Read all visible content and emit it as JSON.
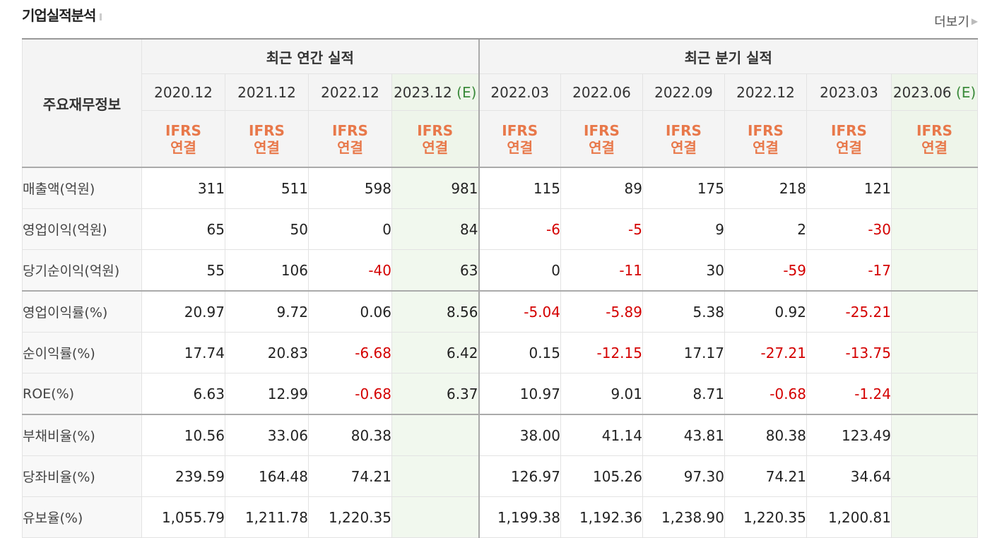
{
  "header": {
    "title": "기업실적분석",
    "more_label": "더보기"
  },
  "table": {
    "row_header_label": "주요재무정보",
    "annual_group_label": "최근 연간 실적",
    "quarter_group_label": "최근 분기 실적",
    "periods": [
      {
        "label": "2020.12",
        "est": ""
      },
      {
        "label": "2021.12",
        "est": ""
      },
      {
        "label": "2022.12",
        "est": ""
      },
      {
        "label": "2023.12",
        "est": "(E)"
      },
      {
        "label": "2022.03",
        "est": ""
      },
      {
        "label": "2022.06",
        "est": ""
      },
      {
        "label": "2022.09",
        "est": ""
      },
      {
        "label": "2022.12",
        "est": ""
      },
      {
        "label": "2023.03",
        "est": ""
      },
      {
        "label": "2023.06",
        "est": "(E)"
      }
    ],
    "ifrs_line1": "IFRS",
    "ifrs_line2": "연결",
    "rows": [
      {
        "label": "매출액(억원)",
        "values": [
          "311",
          "511",
          "598",
          "981",
          "115",
          "89",
          "175",
          "218",
          "121",
          ""
        ]
      },
      {
        "label": "영업이익(억원)",
        "values": [
          "65",
          "50",
          "0",
          "84",
          "-6",
          "-5",
          "9",
          "2",
          "-30",
          ""
        ]
      },
      {
        "label": "당기순이익(억원)",
        "values": [
          "55",
          "106",
          "-40",
          "63",
          "0",
          "-11",
          "30",
          "-59",
          "-17",
          ""
        ]
      },
      {
        "label": "영업이익률(%)",
        "values": [
          "20.97",
          "9.72",
          "0.06",
          "8.56",
          "-5.04",
          "-5.89",
          "5.38",
          "0.92",
          "-25.21",
          ""
        ]
      },
      {
        "label": "순이익률(%)",
        "values": [
          "17.74",
          "20.83",
          "-6.68",
          "6.42",
          "0.15",
          "-12.15",
          "17.17",
          "-27.21",
          "-13.75",
          ""
        ]
      },
      {
        "label": "ROE(%)",
        "values": [
          "6.63",
          "12.99",
          "-0.68",
          "6.37",
          "10.97",
          "9.01",
          "8.71",
          "-0.68",
          "-1.24",
          ""
        ]
      },
      {
        "label": "부채비율(%)",
        "values": [
          "10.56",
          "33.06",
          "80.38",
          "",
          "38.00",
          "41.14",
          "43.81",
          "80.38",
          "123.49",
          ""
        ]
      },
      {
        "label": "당좌비율(%)",
        "values": [
          "239.59",
          "164.48",
          "74.21",
          "",
          "126.97",
          "105.26",
          "97.30",
          "74.21",
          "34.64",
          ""
        ]
      },
      {
        "label": "유보율(%)",
        "values": [
          "1,055.79",
          "1,211.78",
          "1,220.35",
          "",
          "1,199.38",
          "1,192.36",
          "1,238.90",
          "1,220.35",
          "1,200.81",
          ""
        ]
      }
    ]
  }
}
